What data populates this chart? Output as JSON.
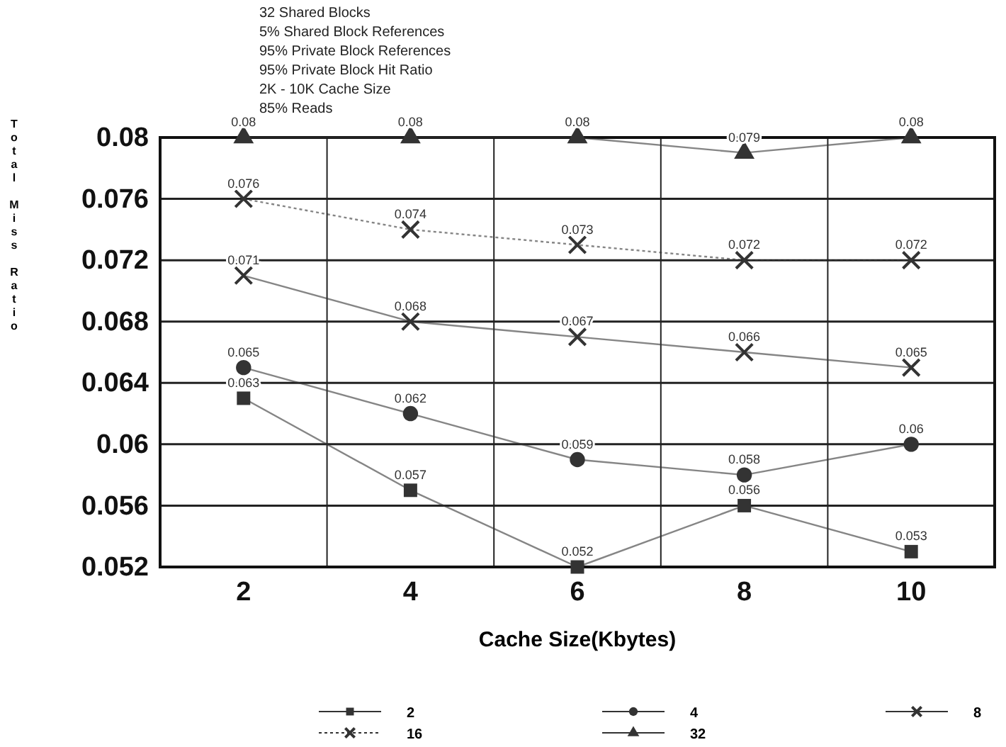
{
  "chart_data": {
    "type": "line",
    "xlabel": "Cache Size(Kbytes)",
    "ylabel": "Total Miss Ratio",
    "annotations": [
      "32 Shared Blocks",
      "5% Shared Block References",
      "95% Private Block References",
      "95% Private Block Hit Ratio",
      "2K - 10K Cache Size",
      "85% Reads"
    ],
    "categories": [
      "2",
      "4",
      "6",
      "8",
      "10"
    ],
    "ylim": [
      0.052,
      0.08
    ],
    "yticks": [
      0.052,
      0.056,
      0.06,
      0.064,
      0.068,
      0.072,
      0.076,
      0.08
    ],
    "grid": true,
    "legend": "bottom",
    "data_labels": true,
    "series": [
      {
        "name": "2",
        "color": "#333333",
        "marker": "square",
        "line_style": "solid",
        "values": [
          0.063,
          0.057,
          0.052,
          0.056,
          0.053
        ]
      },
      {
        "name": "4",
        "color": "#333333",
        "marker": "circle",
        "line_style": "solid",
        "values": [
          0.065,
          0.062,
          0.059,
          0.058,
          0.06
        ]
      },
      {
        "name": "8",
        "color": "#333333",
        "marker": "cross",
        "line_style": "solid",
        "values": [
          0.071,
          0.068,
          0.067,
          0.066,
          0.065
        ]
      },
      {
        "name": "16",
        "color": "#333333",
        "marker": "cross",
        "line_style": "dotted",
        "values": [
          0.076,
          0.074,
          0.073,
          0.072,
          0.072
        ]
      },
      {
        "name": "32",
        "color": "#333333",
        "marker": "triangle",
        "line_style": "solid",
        "values": [
          0.08,
          0.08,
          0.08,
          0.079,
          0.08
        ]
      }
    ]
  }
}
